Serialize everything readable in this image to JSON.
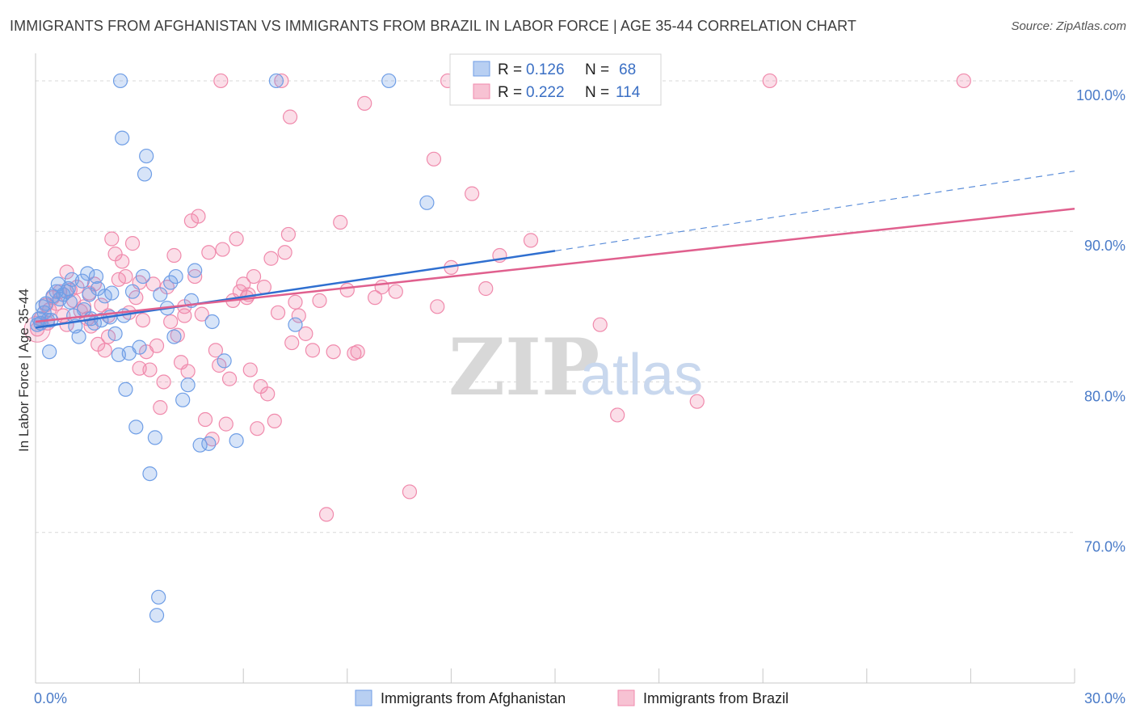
{
  "title": "IMMIGRANTS FROM AFGHANISTAN VS IMMIGRANTS FROM BRAZIL IN LABOR FORCE | AGE 35-44 CORRELATION CHART",
  "source": "Source: ZipAtlas.com",
  "watermark": {
    "zip": "ZIP",
    "atlas": "atlas"
  },
  "colors": {
    "afghanistan": "#6f9ee6",
    "afghanistan_line": "#2f6fd0",
    "brazil": "#f08aac",
    "brazil_line": "#e0608e",
    "grid": "#d9d9d9",
    "tick_label": "#4a7bc8"
  },
  "legend": {
    "r_label": "R =",
    "n_label": "N =",
    "afghanistan": {
      "r": "0.126",
      "n": "68"
    },
    "brazil": {
      "r": "0.222",
      "n": "114"
    }
  },
  "chart_data": {
    "type": "scatter",
    "title": "IMMIGRANTS FROM AFGHANISTAN VS IMMIGRANTS FROM BRAZIL IN LABOR FORCE | AGE 35-44 CORRELATION CHART",
    "xlabel": "",
    "ylabel": "In Labor Force | Age 35-44",
    "xlim": [
      0,
      30
    ],
    "ylim": [
      60,
      101.5
    ],
    "x_tick_labels": [
      "0.0%",
      "30.0%"
    ],
    "y_ticks": [
      70,
      80,
      90,
      100
    ],
    "y_tick_labels": [
      "70.0%",
      "80.0%",
      "90.0%",
      "100.0%"
    ],
    "grid": true,
    "legend_position": "top-center",
    "series": [
      {
        "name": "Immigrants from Afghanistan",
        "trend": {
          "x": [
            0,
            15
          ],
          "y": [
            83.6,
            88.7
          ],
          "dashed_to": [
            30,
            94
          ]
        },
        "points": [
          [
            0.1,
            84.2
          ],
          [
            0.15,
            83.9
          ],
          [
            0.2,
            85
          ],
          [
            0.25,
            84.6
          ],
          [
            0.35,
            84.1
          ],
          [
            0.4,
            82
          ],
          [
            0.5,
            85.7
          ],
          [
            0.6,
            86
          ],
          [
            0.65,
            86.5
          ],
          [
            0.7,
            85.5
          ],
          [
            0.8,
            85.8
          ],
          [
            0.9,
            86
          ],
          [
            1.0,
            85.3
          ],
          [
            1.05,
            86.8
          ],
          [
            1.1,
            84.4
          ],
          [
            1.15,
            83.7
          ],
          [
            1.25,
            83
          ],
          [
            1.35,
            86.7
          ],
          [
            1.4,
            84.8
          ],
          [
            1.5,
            87.2
          ],
          [
            1.55,
            85.8
          ],
          [
            1.6,
            84.2
          ],
          [
            1.7,
            83.9
          ],
          [
            1.75,
            87
          ],
          [
            1.8,
            86.2
          ],
          [
            2.0,
            85.7
          ],
          [
            2.15,
            84.3
          ],
          [
            2.2,
            85.9
          ],
          [
            2.3,
            83.2
          ],
          [
            2.4,
            81.8
          ],
          [
            2.45,
            100
          ],
          [
            2.5,
            96.2
          ],
          [
            2.6,
            79.5
          ],
          [
            2.7,
            81.9
          ],
          [
            2.8,
            86
          ],
          [
            2.9,
            77
          ],
          [
            3.0,
            82.3
          ],
          [
            3.1,
            87
          ],
          [
            3.15,
            93.8
          ],
          [
            3.2,
            95
          ],
          [
            3.3,
            73.9
          ],
          [
            3.45,
            76.3
          ],
          [
            3.55,
            65.7
          ],
          [
            3.5,
            64.5
          ],
          [
            3.6,
            85.8
          ],
          [
            3.8,
            84.9
          ],
          [
            3.9,
            86.6
          ],
          [
            4.0,
            83
          ],
          [
            4.05,
            87
          ],
          [
            4.25,
            78.8
          ],
          [
            4.4,
            79.8
          ],
          [
            4.75,
            75.8
          ],
          [
            4.5,
            85.4
          ],
          [
            4.6,
            87.4
          ],
          [
            5.0,
            75.9
          ],
          [
            5.1,
            84
          ],
          [
            5.45,
            81.4
          ],
          [
            5.8,
            76.1
          ],
          [
            6.95,
            100
          ],
          [
            7.5,
            83.8
          ],
          [
            10.2,
            100
          ],
          [
            11.3,
            91.9
          ],
          [
            0.3,
            85.2
          ],
          [
            0.45,
            84.1
          ],
          [
            0.95,
            86.2
          ],
          [
            1.9,
            84.1
          ],
          [
            2.55,
            84.4
          ],
          [
            0.05,
            83.8
          ]
        ]
      },
      {
        "name": "Immigrants from Brazil",
        "trend": {
          "x": [
            0,
            30
          ],
          "y": [
            84,
            91.5
          ]
        },
        "points": [
          [
            0.05,
            83.5
          ],
          [
            0.15,
            84.2
          ],
          [
            0.3,
            85.1
          ],
          [
            0.4,
            84.8
          ],
          [
            0.5,
            85.6
          ],
          [
            0.6,
            85.2
          ],
          [
            0.7,
            86
          ],
          [
            0.8,
            84.4
          ],
          [
            0.9,
            87.3
          ],
          [
            1.0,
            86.1
          ],
          [
            1.1,
            85.4
          ],
          [
            1.2,
            86.3
          ],
          [
            1.3,
            84.7
          ],
          [
            1.4,
            85
          ],
          [
            1.5,
            84.2
          ],
          [
            1.6,
            83.7
          ],
          [
            1.7,
            86.5
          ],
          [
            1.8,
            82.5
          ],
          [
            1.9,
            85.1
          ],
          [
            2.0,
            82.1
          ],
          [
            2.1,
            84.4
          ],
          [
            2.2,
            89.5
          ],
          [
            2.3,
            88.5
          ],
          [
            2.4,
            86.8
          ],
          [
            2.5,
            88
          ],
          [
            2.6,
            87
          ],
          [
            2.7,
            84.6
          ],
          [
            2.8,
            89.2
          ],
          [
            2.9,
            85.6
          ],
          [
            3.0,
            80.9
          ],
          [
            3.1,
            84.1
          ],
          [
            3.2,
            82
          ],
          [
            3.3,
            80.8
          ],
          [
            3.4,
            86.5
          ],
          [
            3.5,
            82.4
          ],
          [
            3.6,
            78.3
          ],
          [
            3.7,
            80
          ],
          [
            3.8,
            86.3
          ],
          [
            3.9,
            84
          ],
          [
            4.0,
            88.4
          ],
          [
            4.1,
            83.1
          ],
          [
            4.2,
            81.3
          ],
          [
            4.3,
            84.4
          ],
          [
            4.4,
            80.7
          ],
          [
            4.5,
            90.7
          ],
          [
            4.6,
            87
          ],
          [
            4.7,
            91
          ],
          [
            4.8,
            84.5
          ],
          [
            4.9,
            77.5
          ],
          [
            5.0,
            88.6
          ],
          [
            5.1,
            76.2
          ],
          [
            5.2,
            82.1
          ],
          [
            5.3,
            81.1
          ],
          [
            5.4,
            88.8
          ],
          [
            5.5,
            77.2
          ],
          [
            5.6,
            80.2
          ],
          [
            5.7,
            85.4
          ],
          [
            5.8,
            89.5
          ],
          [
            5.9,
            86
          ],
          [
            6.0,
            86.5
          ],
          [
            6.1,
            85.6
          ],
          [
            6.2,
            80.8
          ],
          [
            6.3,
            87
          ],
          [
            6.4,
            76.9
          ],
          [
            6.5,
            79.7
          ],
          [
            6.6,
            86.3
          ],
          [
            6.7,
            79.2
          ],
          [
            6.8,
            88.2
          ],
          [
            6.9,
            77.4
          ],
          [
            7.0,
            84.6
          ],
          [
            7.1,
            100
          ],
          [
            7.2,
            88.6
          ],
          [
            7.3,
            89.8
          ],
          [
            7.4,
            82.6
          ],
          [
            7.5,
            85.3
          ],
          [
            7.6,
            84.4
          ],
          [
            7.8,
            83.2
          ],
          [
            8.0,
            82.1
          ],
          [
            8.2,
            85.4
          ],
          [
            8.4,
            71.2
          ],
          [
            8.6,
            82
          ],
          [
            8.8,
            90.6
          ],
          [
            9.0,
            86.1
          ],
          [
            9.3,
            82
          ],
          [
            9.5,
            98.5
          ],
          [
            9.8,
            85.6
          ],
          [
            10.0,
            86.3
          ],
          [
            10.4,
            86
          ],
          [
            10.8,
            72.7
          ],
          [
            11.5,
            94.8
          ],
          [
            11.6,
            85
          ],
          [
            12.0,
            87.6
          ],
          [
            12.6,
            92.5
          ],
          [
            13.4,
            88.4
          ],
          [
            14.3,
            89.4
          ],
          [
            15.2,
            100
          ],
          [
            16.3,
            83.8
          ],
          [
            16.8,
            77.8
          ],
          [
            17.5,
            100
          ],
          [
            19.1,
            78.7
          ],
          [
            21.2,
            100
          ],
          [
            26.8,
            100
          ],
          [
            5.35,
            100
          ],
          [
            7.35,
            97.6
          ],
          [
            11.9,
            100
          ],
          [
            13.0,
            86.2
          ],
          [
            4.3,
            85
          ],
          [
            3.0,
            86.6
          ],
          [
            2.1,
            83
          ],
          [
            1.55,
            85.9
          ],
          [
            0.9,
            83.8
          ],
          [
            6.15,
            85.8
          ],
          [
            9.2,
            81.9
          ],
          [
            0.35,
            83.9
          ]
        ]
      }
    ]
  },
  "bottom_legend": {
    "afghanistan": "Immigrants from Afghanistan",
    "brazil": "Immigrants from Brazil"
  }
}
